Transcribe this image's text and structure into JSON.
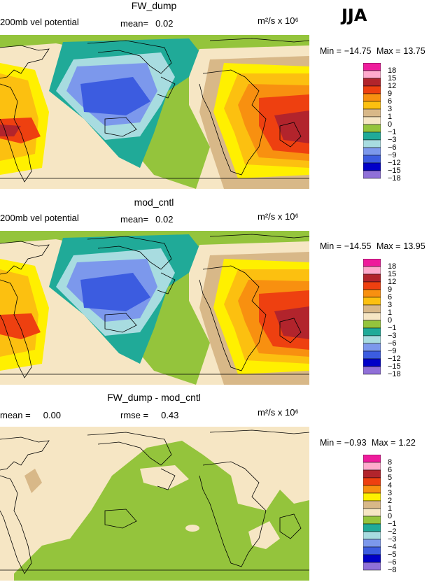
{
  "season": "JJA",
  "panels": [
    {
      "title": "FW_dump",
      "left_label": "200mb vel potential",
      "stat_label": "mean=",
      "stat_value": "0.02",
      "units": "m²/s x 10⁶",
      "min_label": "Min =",
      "min_value": "−14.75",
      "max_label": "Max =",
      "max_value": "13.75",
      "colorbar_labels": [
        "18",
        "15",
        "12",
        "9",
        "6",
        "3",
        "1",
        "0",
        "−1",
        "−3",
        "−6",
        "−9",
        "−12",
        "−15",
        "−18"
      ]
    },
    {
      "title": "mod_cntl",
      "left_label": "200mb vel potential",
      "stat_label": "mean=",
      "stat_value": "0.02",
      "units": "m²/s x 10⁶",
      "min_label": "Min =",
      "min_value": "−14.55",
      "max_label": "Max =",
      "max_value": "13.95",
      "colorbar_labels": [
        "18",
        "15",
        "12",
        "9",
        "6",
        "3",
        "1",
        "0",
        "−1",
        "−3",
        "−6",
        "−9",
        "−12",
        "−15",
        "−18"
      ]
    },
    {
      "title": "FW_dump - mod_cntl",
      "left_label": "mean =",
      "left_value": "0.00",
      "stat_label": "rmse =",
      "stat_value": "0.43",
      "units": "m²/s x 10⁶",
      "min_label": "Min =",
      "min_value": "−0.93",
      "max_label": "Max =",
      "max_value": "1.22",
      "colorbar_labels": [
        "8",
        "6",
        "5",
        "4",
        "3",
        "2",
        "1",
        "0",
        "−1",
        "−2",
        "−3",
        "−4",
        "−5",
        "−6",
        "−8"
      ]
    }
  ],
  "colors": {
    "ramp": [
      "#ee1c9c",
      "#ffaacc",
      "#b2242c",
      "#ee4010",
      "#f89010",
      "#fcc010",
      "#fff000",
      "#d8b888",
      "#f6e6c4",
      "#94c43c",
      "#20aa98",
      "#a8dce0",
      "#7c98ec",
      "#3c5ce0",
      "#0000c8",
      "#9070d8"
    ],
    "diff_ramp": [
      "#ee1c9c",
      "#ffaacc",
      "#b2242c",
      "#ee4010",
      "#f89010",
      "#fff000",
      "#d8b888",
      "#f6e6c4",
      "#94c43c",
      "#20aa98",
      "#a8dce0",
      "#7c98ec",
      "#3c5ce0",
      "#0000c8",
      "#9070d8"
    ]
  }
}
